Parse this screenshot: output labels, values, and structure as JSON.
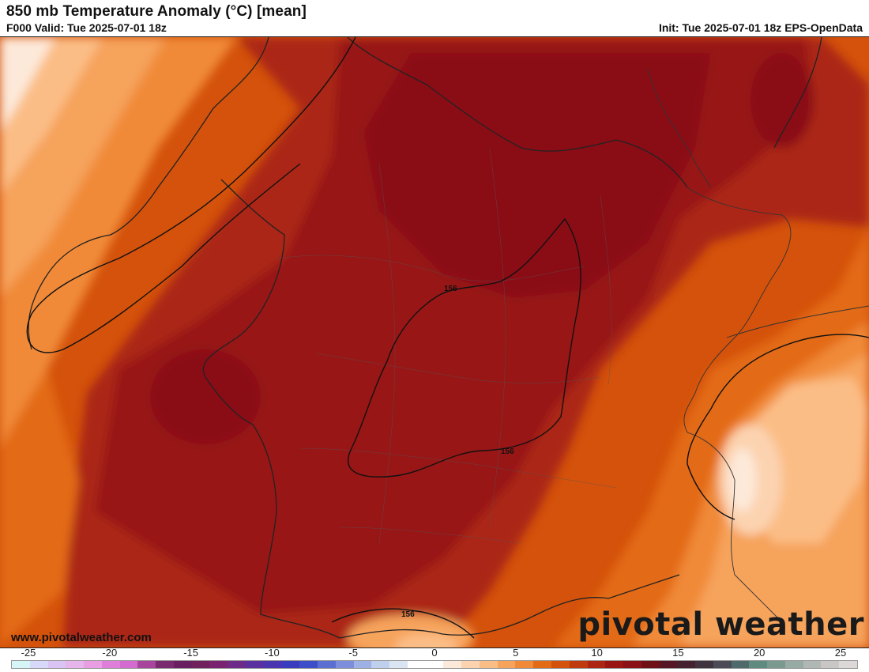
{
  "header": {
    "title": "850 mb Temperature Anomaly (°C) [mean]",
    "valid": "F000 Valid: Tue 2025-07-01 18z",
    "init": "Init: Tue 2025-07-01 18z EPS-OpenData"
  },
  "map": {
    "contour_labels": [
      "156",
      "156",
      "156"
    ],
    "watermark_url": "www.pivotalweather.com",
    "brand": "pivotal weather"
  },
  "colorbar": {
    "ticks": [
      "-25",
      "-20",
      "-15",
      "-10",
      "-5",
      "0",
      "5",
      "10",
      "15",
      "20",
      "25"
    ],
    "colors": [
      "#d6f5f7",
      "#d8d8f8",
      "#d9c4f3",
      "#e6b5ec",
      "#e99ee4",
      "#e07fd9",
      "#d46bd0",
      "#a8459c",
      "#7a2a6e",
      "#6a2060",
      "#70205a",
      "#7a2270",
      "#6e2a88",
      "#5a2fa0",
      "#4b34b0",
      "#3a3cc0",
      "#3c4fc8",
      "#5b6fd2",
      "#7d8fdc",
      "#9eb1e4",
      "#bfd0ec",
      "#dbe4f3",
      "#ffffff",
      "#ffffff",
      "#fde9d9",
      "#fcd3b0",
      "#fbbd86",
      "#f6a35c",
      "#f08a38",
      "#e36b16",
      "#d4520b",
      "#c03a10",
      "#ab2512",
      "#981514",
      "#8a1115",
      "#6e1016",
      "#561626",
      "#45202e",
      "#3f3340",
      "#4a4b56",
      "#4e6a6a",
      "#5f8a80",
      "#7a9a90",
      "#97aaa4",
      "#b0b8b6",
      "#c9c6c6",
      "#ddd8d8"
    ]
  }
}
